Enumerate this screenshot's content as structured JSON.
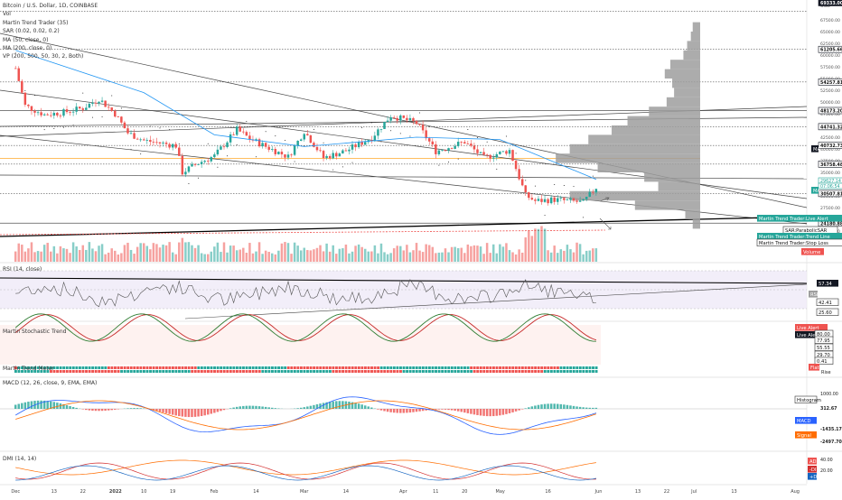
{
  "symbol_title": "Bitcoin / U.S. Dollar, 1D, COINBASE",
  "currency": "USD",
  "legend": [
    "Vol",
    "Martin Trend Trader (35)",
    "SAR (0.02, 0.02, 0.2)",
    "MA (50, close, 0)",
    "MA (200, close, 0)",
    "VP (200, 500, 50, 30, 2, Both)"
  ],
  "colors": {
    "up": "#26a69a",
    "down": "#ef5350",
    "ma50": "#2196f3",
    "profile": "#9e9e9e",
    "orange": "#ff9800",
    "stoch_k": "#2e7d32",
    "stoch_d": "#c62828",
    "macd": "#2962ff",
    "signal": "#ff6d00",
    "rsi_band": "#ede7f6"
  },
  "price_axis": {
    "ticks": [
      "67500.00",
      "65000.00",
      "62500.00",
      "60000.00",
      "57500.00",
      "55000.00",
      "52500.00",
      "50000.00",
      "47500.00",
      "45000.00",
      "42500.00",
      "40000.00",
      "37500.00",
      "35000.00",
      "32500.00",
      "30000.00",
      "27500.00",
      "25000.00",
      "22500.00"
    ],
    "labels": [
      {
        "text": "69333.00",
        "value": 69333,
        "style": "dark"
      },
      {
        "text": "61205.66",
        "value": 61205.66,
        "style": "outline"
      },
      {
        "text": "54257.81",
        "value": 54257.81,
        "style": "outline"
      },
      {
        "text": "48173.20",
        "value": 48173.2,
        "style": "outline"
      },
      {
        "text": "44741.32",
        "value": 44741.32,
        "style": "outline"
      },
      {
        "text": "40732.73",
        "value": 40732.73,
        "style": "outline"
      },
      {
        "text": "36758.48",
        "value": 36758.48,
        "style": "outline"
      },
      {
        "text": "30507.81",
        "value": 30507.81,
        "style": "outline"
      },
      {
        "text": "24180.88",
        "value": 24180.88,
        "style": "outline"
      }
    ],
    "stack": [
      {
        "text": "29627.14",
        "color": "#26a69a"
      },
      {
        "text": "07:06:54",
        "color": "#26a69a"
      }
    ]
  },
  "side_tags": [
    {
      "text": "Martin Trend Trader:Live Alert",
      "color": "#26a69a"
    },
    {
      "text": "SAR:ParabolicSAR",
      "color": "#ffffff"
    },
    {
      "text": "Martin Trend Trader:Trend Line",
      "color": "#26a69a"
    },
    {
      "text": "Martin Trend Trader:Stop Loss",
      "color": "#ffffff"
    },
    {
      "text": "Volume",
      "color": "#ef5350"
    }
  ],
  "ma_tags": [
    "MA",
    "MA"
  ],
  "x_axis": [
    "Dec",
    "13",
    "22",
    "2022",
    "10",
    "19",
    "Feb",
    "14",
    "Mar",
    "14",
    "Apr",
    "11",
    "20",
    "May",
    "16",
    "Jun",
    "13",
    "22",
    "Jul",
    "13",
    "Aug"
  ],
  "panes": {
    "rsi": {
      "title": "RSI (14, close)",
      "labels": [
        "57.34",
        "42.41",
        "25.60"
      ],
      "tag": "RSI"
    },
    "stoch": {
      "title": "Martin Stochastic Trend",
      "labels": [
        "Live Alert",
        "Live Alert",
        "80.00",
        "77.95",
        "55.55",
        "29.70",
        "0.41"
      ]
    },
    "trend": {
      "title": "Martin Trend Meter",
      "labels": [
        "Flat",
        "Rise"
      ]
    },
    "macd": {
      "title": "MACD (12, 26, close, 9, EMA, EMA)",
      "labels": [
        "1000.00",
        "Histogram",
        "312.67",
        "MACD",
        "-1435.17",
        "Signal",
        "-2497.70"
      ]
    },
    "dmi": {
      "title": "DMI (14, 14)",
      "labels": [
        "40.00",
        "ADX",
        "20.00",
        "-DI",
        "+DI"
      ]
    }
  },
  "chart_data": {
    "type": "candlestick",
    "title": "Bitcoin / U.S. Dollar, 1D, COINBASE",
    "ylabel": "USD",
    "ylim": [
      22500,
      67500
    ],
    "x_range": [
      "2021-12-01",
      "2022-08-01"
    ],
    "price_path": [
      {
        "d": "2021-12-01",
        "p": 57200
      },
      {
        "d": "2021-12-04",
        "p": 49200
      },
      {
        "d": "2021-12-10",
        "p": 47300
      },
      {
        "d": "2021-12-16",
        "p": 47800
      },
      {
        "d": "2021-12-22",
        "p": 48700
      },
      {
        "d": "2021-12-27",
        "p": 50700
      },
      {
        "d": "2022-01-01",
        "p": 47500
      },
      {
        "d": "2022-01-05",
        "p": 43400
      },
      {
        "d": "2022-01-10",
        "p": 41800
      },
      {
        "d": "2022-01-20",
        "p": 40700
      },
      {
        "d": "2022-01-22",
        "p": 35000
      },
      {
        "d": "2022-01-27",
        "p": 37000
      },
      {
        "d": "2022-02-01",
        "p": 38500
      },
      {
        "d": "2022-02-08",
        "p": 44100
      },
      {
        "d": "2022-02-12",
        "p": 42200
      },
      {
        "d": "2022-02-17",
        "p": 40500
      },
      {
        "d": "2022-02-24",
        "p": 38300
      },
      {
        "d": "2022-03-01",
        "p": 43800
      },
      {
        "d": "2022-03-07",
        "p": 38100
      },
      {
        "d": "2022-03-14",
        "p": 39600
      },
      {
        "d": "2022-03-22",
        "p": 42400
      },
      {
        "d": "2022-03-28",
        "p": 47100
      },
      {
        "d": "2022-04-05",
        "p": 45500
      },
      {
        "d": "2022-04-11",
        "p": 39500
      },
      {
        "d": "2022-04-20",
        "p": 41500
      },
      {
        "d": "2022-04-26",
        "p": 38100
      },
      {
        "d": "2022-05-04",
        "p": 39700
      },
      {
        "d": "2022-05-09",
        "p": 30100
      },
      {
        "d": "2022-05-12",
        "p": 28900
      },
      {
        "d": "2022-05-18",
        "p": 29200
      },
      {
        "d": "2022-05-27",
        "p": 28600
      },
      {
        "d": "2022-05-31",
        "p": 31800
      }
    ],
    "ma50_path": [
      {
        "d": "2021-12-01",
        "p": 61000
      },
      {
        "d": "2022-01-10",
        "p": 52000
      },
      {
        "d": "2022-02-01",
        "p": 43000
      },
      {
        "d": "2022-03-01",
        "p": 40500
      },
      {
        "d": "2022-04-05",
        "p": 42500
      },
      {
        "d": "2022-05-01",
        "p": 42000
      },
      {
        "d": "2022-05-31",
        "p": 33500
      }
    ],
    "horizontal_levels": [
      69333,
      61205.66,
      54257.81,
      48173.2,
      44741.32,
      40732.73,
      36758.48,
      30507.81,
      24180.88
    ],
    "volume_profile": [
      {
        "p": 66000,
        "v": 8
      },
      {
        "p": 64000,
        "v": 10
      },
      {
        "p": 62000,
        "v": 14
      },
      {
        "p": 60000,
        "v": 18
      },
      {
        "p": 58000,
        "v": 32
      },
      {
        "p": 56000,
        "v": 38
      },
      {
        "p": 54000,
        "v": 30
      },
      {
        "p": 52000,
        "v": 28
      },
      {
        "p": 50000,
        "v": 36
      },
      {
        "p": 48000,
        "v": 55
      },
      {
        "p": 46000,
        "v": 78
      },
      {
        "p": 44000,
        "v": 95
      },
      {
        "p": 42000,
        "v": 120
      },
      {
        "p": 40000,
        "v": 140
      },
      {
        "p": 38000,
        "v": 155
      },
      {
        "p": 36000,
        "v": 110
      },
      {
        "p": 34000,
        "v": 60
      },
      {
        "p": 32000,
        "v": 45
      },
      {
        "p": 30000,
        "v": 140
      },
      {
        "p": 28000,
        "v": 70
      },
      {
        "p": 26000,
        "v": 16
      },
      {
        "p": 24000,
        "v": 8
      }
    ]
  }
}
